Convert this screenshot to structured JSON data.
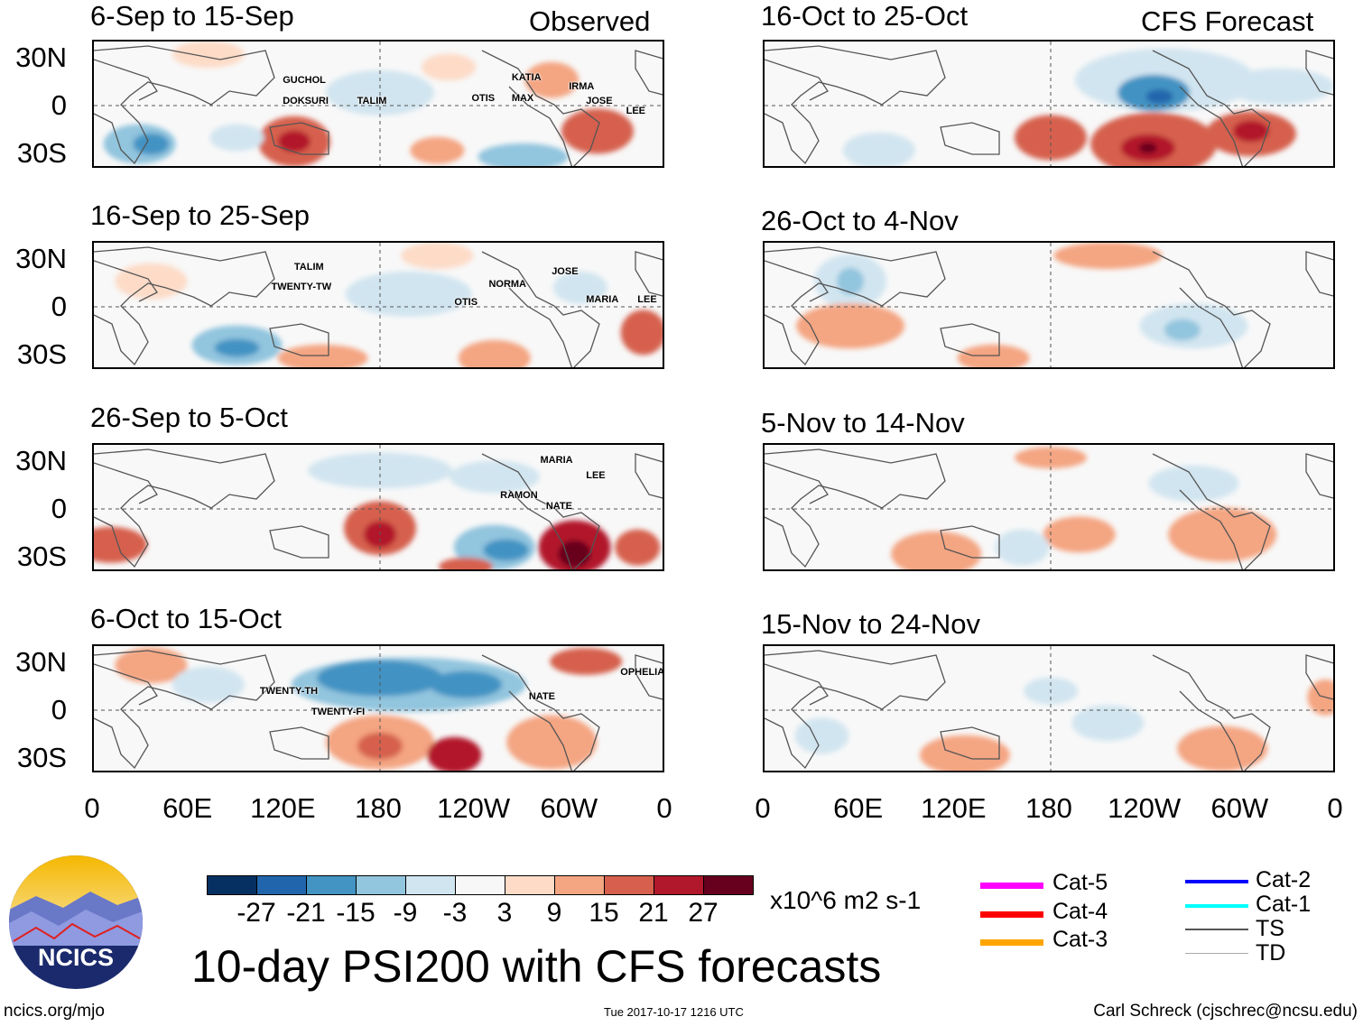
{
  "chart_data": {
    "type": "heatmap",
    "title": "10-day PSI200 with CFS forecasts",
    "units": "x10^6 m2 s-1",
    "lat_ticks": [
      "30N",
      "0",
      "30S"
    ],
    "lon_ticks": [
      "0",
      "60E",
      "120E",
      "180",
      "120W",
      "60W",
      "0"
    ],
    "colorbar": {
      "labels": [
        "-27",
        "-21",
        "-15",
        "-9",
        "-3",
        "3",
        "9",
        "15",
        "21",
        "27"
      ],
      "colors": [
        "#053061",
        "#2166ac",
        "#4393c3",
        "#92c5de",
        "#d1e5f0",
        "#f7f7f7",
        "#fddbc7",
        "#f4a582",
        "#d6604d",
        "#b2182b",
        "#67001f"
      ]
    },
    "panels": [
      {
        "title": "6-Sep to 15-Sep",
        "tag": "Observed",
        "storms": [
          "GUCHOL",
          "DOKSURI",
          "TALIM",
          "KATIA",
          "OTIS",
          "MAX",
          "IRMA",
          "JOSE",
          "LEE"
        ]
      },
      {
        "title": "16-Sep to 25-Sep",
        "tag": "",
        "storms": [
          "TALIM",
          "TWENTY-TW",
          "JOSE",
          "OTIS",
          "NORMA",
          "MARIA",
          "LEE"
        ]
      },
      {
        "title": "26-Sep to 5-Oct",
        "tag": "",
        "storms": [
          "MARIA",
          "LEE",
          "RAMON",
          "NATE"
        ]
      },
      {
        "title": "6-Oct to 15-Oct",
        "tag": "",
        "storms": [
          "TWENTY-TH",
          "TWENTY-FI",
          "NATE",
          "OPHELIA"
        ]
      },
      {
        "title": "16-Oct to 25-Oct",
        "tag": "CFS Forecast",
        "storms": []
      },
      {
        "title": "26-Oct to 4-Nov",
        "tag": "",
        "storms": []
      },
      {
        "title": "5-Nov to 14-Nov",
        "tag": "",
        "storms": []
      },
      {
        "title": "15-Nov to 24-Nov",
        "tag": "",
        "storms": []
      }
    ]
  },
  "storm_legend": [
    {
      "label": "Cat-5",
      "color": "#ff00ff"
    },
    {
      "label": "Cat-4",
      "color": "#ff0000"
    },
    {
      "label": "Cat-3",
      "color": "#ffa500"
    },
    {
      "label": "Cat-2",
      "color": "#0000ff"
    },
    {
      "label": "Cat-1",
      "color": "#00ffff"
    },
    {
      "label": "TS",
      "color": "#555555"
    },
    {
      "label": "TD",
      "color": "#aaaaaa"
    }
  ],
  "footer": {
    "left": "ncics.org/mjo",
    "center": "Tue 2017-10-17 1216 UTC",
    "right": "Carl Schreck (cjschrec@ncsu.edu)"
  },
  "logo": "NCICS"
}
